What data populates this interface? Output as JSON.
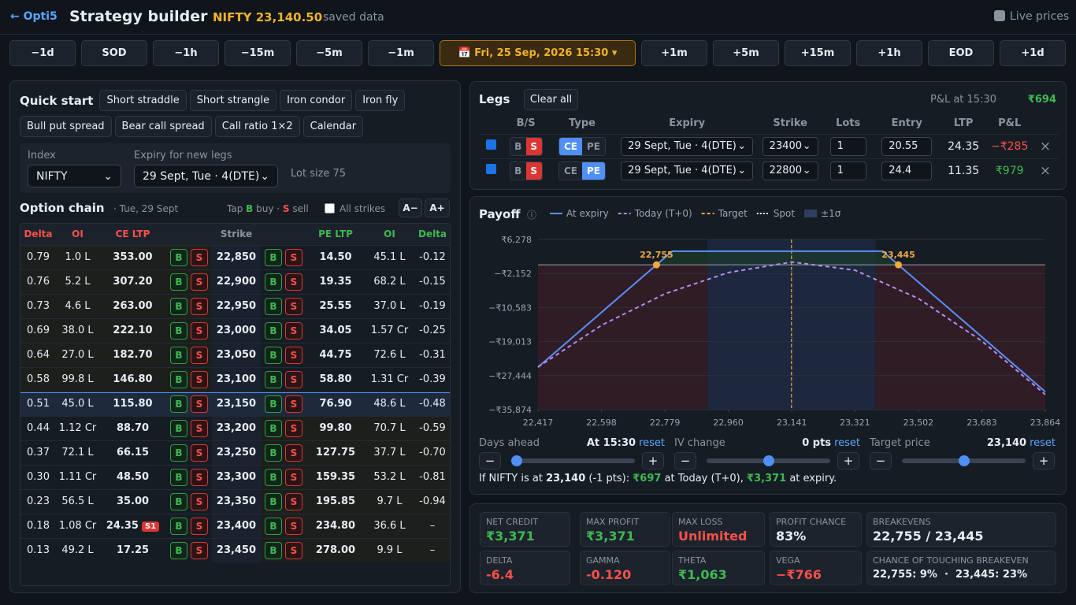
{
  "header": {
    "back": "← Opti5",
    "title": "Strategy builder",
    "quote": "NIFTY 23,140.50",
    "status": "saved data",
    "live": "Live prices"
  },
  "time_nav": {
    "back_steps": [
      "−1d",
      "SOD",
      "−1h",
      "−15m",
      "−5m",
      "−1m"
    ],
    "current": "📅 Fri, 25 Sep, 2026 15:30 ▾",
    "forward_steps": [
      "+1m",
      "+5m",
      "+15m",
      "+1h",
      "EOD",
      "+1d"
    ]
  },
  "quick_start": {
    "title": "Quick start",
    "presets": [
      "Short straddle",
      "Short strangle",
      "Iron condor",
      "Iron fly",
      "Bull put spread",
      "Bear call spread",
      "Call ratio 1×2",
      "Calendar"
    ]
  },
  "settings": {
    "index_label": "Index",
    "index_value": "NIFTY",
    "expiry_label": "Expiry for new legs",
    "expiry_value": "29 Sept, Tue · 4(DTE)",
    "lot_size": "Lot size 75"
  },
  "option_chain": {
    "title": "Option chain",
    "date": "· Tue, 29 Sept",
    "hint": [
      "Tap ",
      "B",
      " buy · ",
      "S",
      " sell"
    ],
    "all_strikes": "All strikes",
    "font_smaller": "A−",
    "font_larger": "A+",
    "columns": [
      "Delta",
      "OI",
      "CE LTP",
      "Strike",
      "PE LTP",
      "OI",
      "Delta"
    ],
    "buy": "B",
    "sell": "S",
    "rows": [
      {
        "cells": [
          "0.79",
          "1.0 L",
          "353.00",
          "22,850",
          "14.50",
          "45.1 L",
          "-0.12"
        ]
      },
      {
        "cells": [
          "0.76",
          "5.2 L",
          "307.20",
          "22,900",
          "19.35",
          "68.2 L",
          "-0.15"
        ]
      },
      {
        "cells": [
          "0.73",
          "4.6 L",
          "263.00",
          "22,950",
          "25.55",
          "37.0 L",
          "-0.19"
        ]
      },
      {
        "cells": [
          "0.69",
          "38.0 L",
          "222.10",
          "23,000",
          "34.05",
          "1.57 Cr",
          "-0.25"
        ]
      },
      {
        "cells": [
          "0.64",
          "27.0 L",
          "182.70",
          "23,050",
          "44.75",
          "72.6 L",
          "-0.31"
        ]
      },
      {
        "cells": [
          "0.58",
          "99.8 L",
          "146.80",
          "23,100",
          "58.80",
          "1.31 Cr",
          "-0.39"
        ]
      },
      {
        "cells": [
          "0.51",
          "45.0 L",
          "115.80",
          "23,150",
          "76.90",
          "48.6 L",
          "-0.48"
        ],
        "highlight": true
      },
      {
        "cells": [
          "0.44",
          "1.12 Cr",
          "88.70",
          "23,200",
          "99.80",
          "70.7 L",
          "-0.59"
        ]
      },
      {
        "cells": [
          "0.37",
          "72.1 L",
          "66.15",
          "23,250",
          "127.75",
          "37.7 L",
          "-0.70"
        ]
      },
      {
        "cells": [
          "0.30",
          "1.11 Cr",
          "48.50",
          "23,300",
          "159.35",
          "53.2 L",
          "-0.81"
        ]
      },
      {
        "cells": [
          "0.23",
          "56.5 L",
          "35.00",
          "23,350",
          "195.85",
          "9.7 L",
          "-0.94"
        ]
      },
      {
        "cells": [
          "0.18",
          "1.08 Cr",
          "24.35",
          "23,400",
          "234.80",
          "36.6 L",
          "–"
        ],
        "tag": "S1"
      },
      {
        "cells": [
          "0.13",
          "49.2 L",
          "17.25",
          "23,450",
          "278.00",
          "9.9 L",
          "–"
        ]
      }
    ]
  },
  "legs": {
    "title": "Legs",
    "clear": "Clear all",
    "pnl_label": "P&L at 15:30",
    "pnl_value": "₹694",
    "columns": [
      "B/S",
      "Type",
      "Expiry",
      "Strike",
      "Lots",
      "Entry",
      "LTP",
      "P&L"
    ],
    "side_options": [
      "B",
      "S"
    ],
    "type_options": [
      "CE",
      "PE"
    ],
    "remove": "×",
    "rows": [
      {
        "side": "S",
        "type": "CE",
        "expiry": "29 Sept, Tue · 4(DTE)",
        "strike": "23400",
        "lots": "1",
        "entry": "20.55",
        "ltp": "24.35",
        "pnl": "−₹285",
        "tone": "red"
      },
      {
        "side": "S",
        "type": "PE",
        "expiry": "29 Sept, Tue · 4(DTE)",
        "strike": "22800",
        "lots": "1",
        "entry": "24.4",
        "ltp": "11.35",
        "pnl": "₹979",
        "tone": "green"
      }
    ]
  },
  "chart_data": {
    "type": "line",
    "title": "Payoff",
    "info": "ⓘ",
    "series": [
      {
        "name": "At expiry",
        "color": "#5b8ff9",
        "style": "solid",
        "x": [
          22417,
          22800,
          23400,
          23864
        ],
        "values": [
          -25354,
          3371,
          3371,
          -31429
        ]
      },
      {
        "name": "Today (T+0)",
        "color": "#b48cf2",
        "style": "dashed",
        "x": [
          22417,
          22598,
          22779,
          22960,
          23141,
          23321,
          23502,
          23683,
          23864
        ],
        "values": [
          -25312,
          -14977,
          -7177,
          -1912,
          697,
          -1327,
          -8342,
          -18877,
          -32137
        ]
      }
    ],
    "target": {
      "name": "Target",
      "x": 23140,
      "color": "#f0a93b"
    },
    "spot": {
      "name": "Spot",
      "x": 23140.5,
      "color": "#e6edf3"
    },
    "sigma_band": {
      "name": "±1σ",
      "range": [
        22900,
        23380
      ],
      "color": "#2d3f5e"
    },
    "breakevens": {
      "x": [
        22755,
        23445
      ],
      "values": [
        0,
        0
      ],
      "labels": [
        "22,755",
        "23,445"
      ],
      "color": "#f0a93b"
    },
    "xlim": [
      22417,
      23864
    ],
    "ylim": [
      -35874,
      6278
    ],
    "xticks": [
      {
        "value": 22417,
        "label": "22,417"
      },
      {
        "value": 22598,
        "label": "22,598"
      },
      {
        "value": 22779,
        "label": "22,779"
      },
      {
        "value": 22960,
        "label": "22,960"
      },
      {
        "value": 23141,
        "label": "23,141"
      },
      {
        "value": 23321,
        "label": "23,321"
      },
      {
        "value": 23502,
        "label": "23,502"
      },
      {
        "value": 23683,
        "label": "23,683"
      },
      {
        "value": 23864,
        "label": "23,864"
      }
    ],
    "yticks": [
      {
        "value": 6278,
        "label": "₹6,278"
      },
      {
        "value": -2152,
        "label": "−₹2,152"
      },
      {
        "value": -10583,
        "label": "−₹10,583"
      },
      {
        "value": -19013,
        "label": "−₹19,013"
      },
      {
        "value": -27444,
        "label": "−₹27,444"
      },
      {
        "value": -35874,
        "label": "−₹35,874"
      }
    ],
    "grid": true
  },
  "controls": {
    "minus": "−",
    "plus": "+",
    "reset": "reset",
    "items": [
      {
        "label": "Days ahead",
        "value": "At 15:30",
        "slider": 0
      },
      {
        "label": "IV change",
        "value": "0 pts",
        "slider": 50
      },
      {
        "label": "Target price",
        "value": "23,140",
        "slider": 50
      }
    ]
  },
  "summary": [
    "If NIFTY is at ",
    "23,140",
    " (-1 pts): ",
    "₹697",
    " at Today (T+0), ",
    "₹3,371",
    " at expiry."
  ],
  "stats": [
    {
      "label": "NET CREDIT",
      "value": "₹3,371",
      "tone": "green"
    },
    {
      "label": "MAX PROFIT",
      "value": "₹3,371",
      "tone": "green"
    },
    {
      "label": "MAX LOSS",
      "value": "Unlimited",
      "tone": "red"
    },
    {
      "label": "PROFIT CHANCE",
      "value": "83%",
      "tone": "white"
    },
    {
      "label": "BREAKEVENS",
      "value": "22,755 / 23,445",
      "tone": "white"
    },
    {
      "label": "DELTA",
      "value": "-6.4",
      "tone": "red"
    },
    {
      "label": "GAMMA",
      "value": "-0.120",
      "tone": "red"
    },
    {
      "label": "THETA",
      "value": "₹1,063",
      "tone": "green"
    },
    {
      "label": "VEGA",
      "value": "−₹766",
      "tone": "red"
    },
    {
      "label": "CHANCE OF TOUCHING BREAKEVEN",
      "value": "22,755: 9%  ·  23,445: 23%",
      "tone": "white small"
    }
  ]
}
